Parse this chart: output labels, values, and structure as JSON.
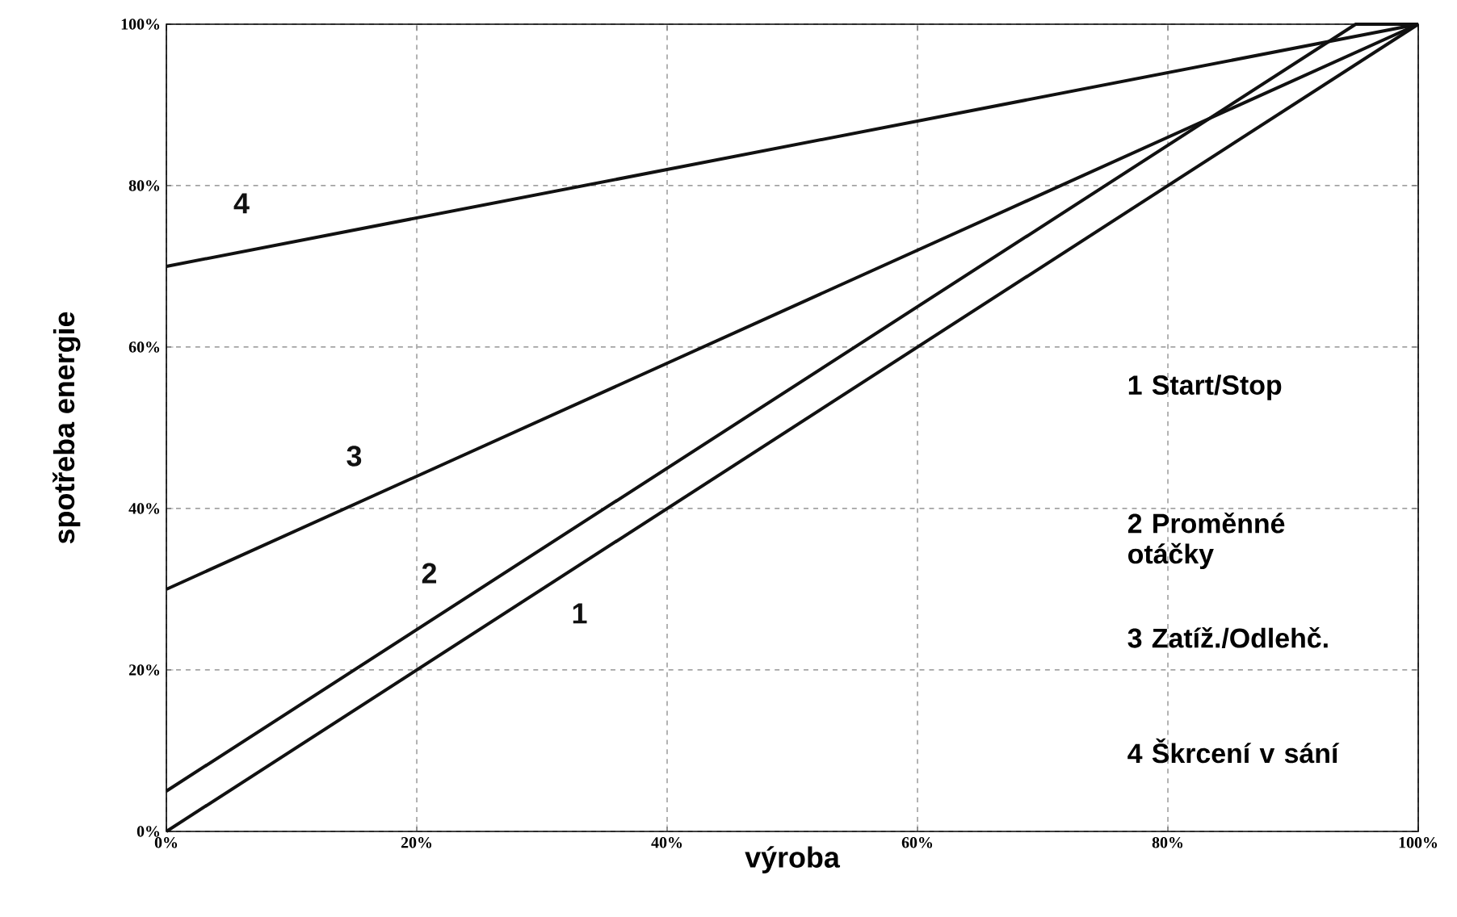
{
  "chart_data": {
    "type": "line",
    "xlabel": "výroba",
    "ylabel": "spotřeba energie",
    "xlim": [
      0,
      100
    ],
    "ylim": [
      0,
      100
    ],
    "xticks": [
      {
        "value": 0,
        "label": "0%"
      },
      {
        "value": 20,
        "label": "20%"
      },
      {
        "value": 40,
        "label": "40%"
      },
      {
        "value": 60,
        "label": "60%"
      },
      {
        "value": 80,
        "label": "80%"
      },
      {
        "value": 100,
        "label": "100%"
      }
    ],
    "yticks": [
      {
        "value": 0,
        "label": "0%"
      },
      {
        "value": 20,
        "label": "20%"
      },
      {
        "value": 40,
        "label": "40%"
      },
      {
        "value": 60,
        "label": "60%"
      },
      {
        "value": 80,
        "label": "80%"
      },
      {
        "value": 100,
        "label": "100%"
      }
    ],
    "grid": true,
    "line_style": "solid",
    "marker": "none",
    "legend": false,
    "series": [
      {
        "name": "1",
        "color": "#111111",
        "x": [
          0,
          100
        ],
        "values": [
          0,
          100
        ]
      },
      {
        "name": "2",
        "color": "#111111",
        "x": [
          0,
          95,
          100
        ],
        "values": [
          5,
          100,
          100
        ]
      },
      {
        "name": "3",
        "color": "#111111",
        "x": [
          0,
          100
        ],
        "values": [
          30,
          100
        ]
      },
      {
        "name": "4",
        "color": "#111111",
        "x": [
          0,
          100
        ],
        "values": [
          70,
          100
        ]
      }
    ],
    "annotations": [
      "1 Start/Stop",
      "2 Proměnné otáčky",
      "3 Zatíž./Odlehč.",
      "4 Škrcení v sání"
    ]
  }
}
